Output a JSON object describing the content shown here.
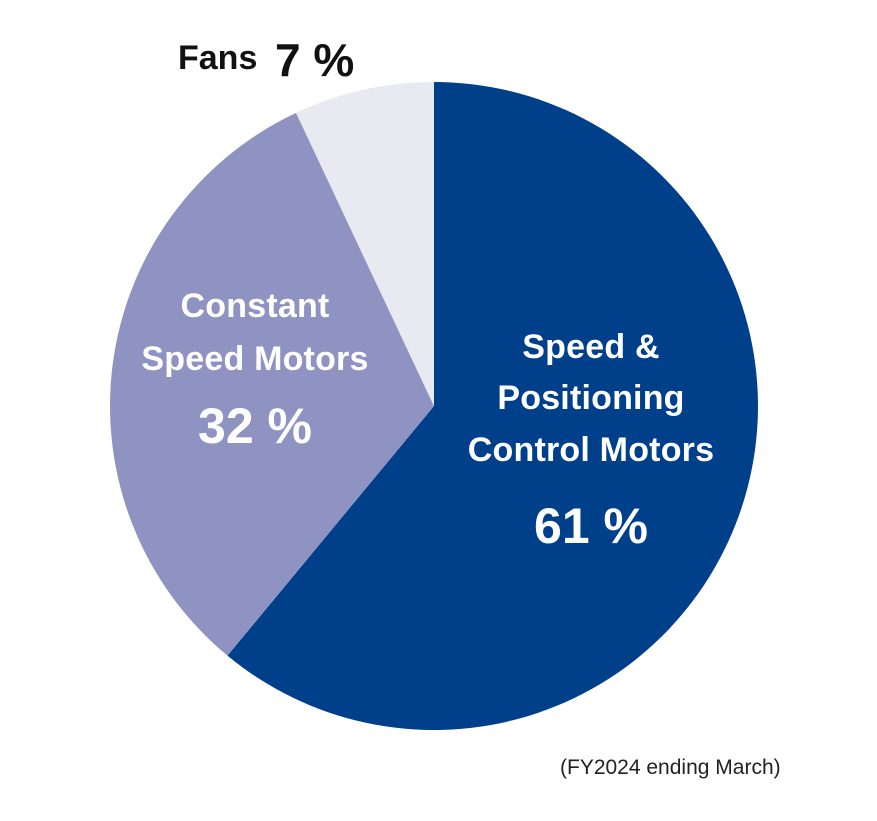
{
  "chart_data": {
    "type": "pie",
    "title": "",
    "slices": [
      {
        "id": "speed-positioning",
        "label_lines": [
          "Speed &",
          "Positioning",
          "Control Motors"
        ],
        "value": 61,
        "value_label": "61 %",
        "color": "#003f8a",
        "text_color": "#ffffff"
      },
      {
        "id": "constant-speed",
        "label_lines": [
          "Constant",
          "Speed Motors"
        ],
        "value": 32,
        "value_label": "32 %",
        "color": "#8f93c1",
        "text_color": "#ffffff"
      },
      {
        "id": "fans",
        "label_lines": [
          "Fans"
        ],
        "value": 7,
        "value_label": "7 %",
        "color": "#e9e9f2",
        "text_color": "#111111"
      }
    ],
    "start_angle": "12 o'clock",
    "direction": "clockwise",
    "legend": "none"
  },
  "footnote": "(FY2024 ending March)"
}
